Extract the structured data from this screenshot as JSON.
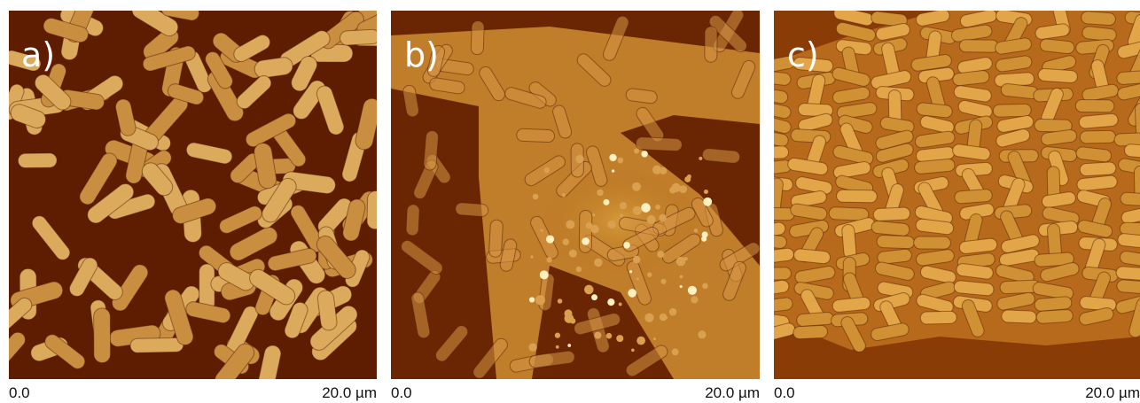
{
  "panels": [
    {
      "label": "a)",
      "scale_start": "0.0",
      "scale_end": "20.0 µm"
    },
    {
      "label": "b)",
      "scale_start": "0.0",
      "scale_end": "20.0 µm"
    },
    {
      "label": "c)",
      "scale_start": "0.0",
      "scale_end": "20.0 µm"
    }
  ]
}
